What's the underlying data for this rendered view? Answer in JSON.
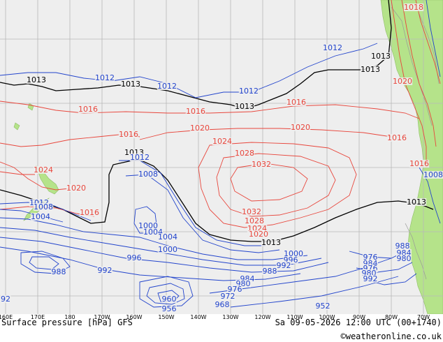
{
  "map": {
    "title": "Surface pressure [hPa] GFS",
    "valid_time": "Sa 09-05-2026 12:00 UTC (00+1740)",
    "credit": "©weatheronline.co.uk",
    "longitude_labels": [
      "160E",
      "170E",
      "180",
      "170W",
      "160W",
      "150W",
      "140W",
      "130W",
      "120W",
      "110W",
      "100W",
      "90W",
      "80W",
      "70W"
    ],
    "colors": {
      "ocean": "#eeeeee",
      "land": "#b5e38a",
      "grid": "#b8b8b8",
      "high": "#e8463c",
      "low": "#2244cc",
      "normal": "#000000"
    }
  },
  "isobar_labels": [
    {
      "text": "1018",
      "color": "high"
    },
    {
      "text": "1013",
      "color": "normal"
    },
    {
      "text": "1012",
      "color": "low"
    },
    {
      "text": "1013",
      "color": "normal"
    },
    {
      "text": "1012",
      "color": "low"
    },
    {
      "text": "1013",
      "color": "normal"
    },
    {
      "text": "1012",
      "color": "low"
    },
    {
      "text": "1012",
      "color": "low"
    },
    {
      "text": "1013",
      "color": "normal"
    },
    {
      "text": "1013",
      "color": "normal"
    },
    {
      "text": "1020",
      "color": "high"
    },
    {
      "text": "1016",
      "color": "high"
    },
    {
      "text": "1016",
      "color": "high"
    },
    {
      "text": "1016",
      "color": "high"
    },
    {
      "text": "1020",
      "color": "high"
    },
    {
      "text": "1020",
      "color": "high"
    },
    {
      "text": "1016",
      "color": "high"
    },
    {
      "text": "1016",
      "color": "high"
    },
    {
      "text": "1024",
      "color": "high"
    },
    {
      "text": "1028",
      "color": "high"
    },
    {
      "text": "1032",
      "color": "high"
    },
    {
      "text": "1016",
      "color": "high"
    },
    {
      "text": "1013",
      "color": "normal"
    },
    {
      "text": "1012",
      "color": "low"
    },
    {
      "text": "1024",
      "color": "high"
    },
    {
      "text": "1008",
      "color": "low"
    },
    {
      "text": "1008",
      "color": "low"
    },
    {
      "text": "1020",
      "color": "high"
    },
    {
      "text": "1013",
      "color": "normal"
    },
    {
      "text": "1012",
      "color": "low"
    },
    {
      "text": "1008",
      "color": "low"
    },
    {
      "text": "1016",
      "color": "high"
    },
    {
      "text": "1004",
      "color": "low"
    },
    {
      "text": "1032",
      "color": "high"
    },
    {
      "text": "1028",
      "color": "high"
    },
    {
      "text": "1024",
      "color": "high"
    },
    {
      "text": "1020",
      "color": "high"
    },
    {
      "text": "1013",
      "color": "normal"
    },
    {
      "text": "1000",
      "color": "low"
    },
    {
      "text": "1004",
      "color": "low"
    },
    {
      "text": "1004",
      "color": "low"
    },
    {
      "text": "1000",
      "color": "low"
    },
    {
      "text": "1000",
      "color": "low"
    },
    {
      "text": "996",
      "color": "low"
    },
    {
      "text": "996",
      "color": "low"
    },
    {
      "text": "992",
      "color": "low"
    },
    {
      "text": "988",
      "color": "low"
    },
    {
      "text": "984",
      "color": "low"
    },
    {
      "text": "988",
      "color": "low"
    },
    {
      "text": "988",
      "color": "low"
    },
    {
      "text": "984",
      "color": "low"
    },
    {
      "text": "980",
      "color": "low"
    },
    {
      "text": "976",
      "color": "low"
    },
    {
      "text": "992",
      "color": "low"
    },
    {
      "text": "984",
      "color": "low"
    },
    {
      "text": "980",
      "color": "low"
    },
    {
      "text": "976",
      "color": "low"
    },
    {
      "text": "972",
      "color": "low"
    },
    {
      "text": "968",
      "color": "low"
    },
    {
      "text": "960",
      "color": "low"
    },
    {
      "text": "956",
      "color": "low"
    },
    {
      "text": "952",
      "color": "low"
    },
    {
      "text": "92",
      "color": "low"
    },
    {
      "text": "976",
      "color": "low"
    },
    {
      "text": "980",
      "color": "low"
    },
    {
      "text": "992",
      "color": "low"
    }
  ]
}
